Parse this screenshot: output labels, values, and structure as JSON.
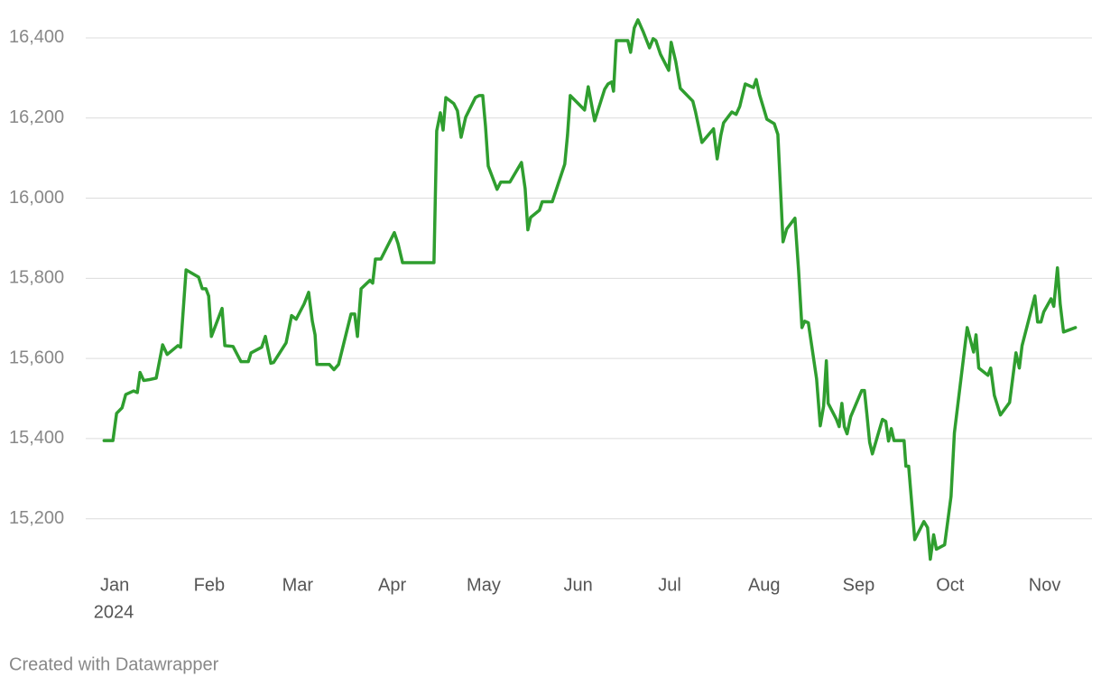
{
  "chart_data": {
    "type": "line",
    "color": "#2f9e2f",
    "grid": true,
    "x": [
      -3.5,
      -0.6,
      0.6,
      2.4,
      3.6,
      6.2,
      7.4,
      8.3,
      9.5,
      11.2,
      13.6,
      15.7,
      17.2,
      20.7,
      21.6,
      23.4,
      27.5,
      28.7,
      29.9,
      30.8,
      31.7,
      35.2,
      36.1,
      38.8,
      41.4,
      43.8,
      44.7,
      48.2,
      49.4,
      51.2,
      52.1,
      56.2,
      58.0,
      59.5,
      62.1,
      63.6,
      64.8,
      65.7,
      66.3,
      70.4,
      71.9,
      73.4,
      77.5,
      78.7,
      79.6,
      80.8,
      83.7,
      84.6,
      85.5,
      87.3,
      91.7,
      92.9,
      94.4,
      104.7,
      105.6,
      106.8,
      107.7,
      108.6,
      111.2,
      112.4,
      113.6,
      115.1,
      118.3,
      119.5,
      120.7,
      121.6,
      122.5,
      125.4,
      126.6,
      129.6,
      133.4,
      134.6,
      135.5,
      136.4,
      139.3,
      140.2,
      143.5,
      147.6,
      148.5,
      149.4,
      154.1,
      155.3,
      157.4,
      160.7,
      161.8,
      163.0,
      163.6,
      164.5,
      168.3,
      169.2,
      170.4,
      171.6,
      173.4,
      175.4,
      176.6,
      177.5,
      179.0,
      181.7,
      182.5,
      184.0,
      185.5,
      189.6,
      190.5,
      192.6,
      196.4,
      197.6,
      198.8,
      199.7,
      202.4,
      203.8,
      205.0,
      206.8,
      209.5,
      210.4,
      211.5,
      213.0,
      213.9,
      216.3,
      217.5,
      219.2,
      220.4,
      223.1,
      224.3,
      225.4,
      226.3,
      227.5,
      230.2,
      231.4,
      232.5,
      233.4,
      234.0,
      236.7,
      237.6,
      238.5,
      239.3,
      240.2,
      241.4,
      245.0,
      245.9,
      246.7,
      247.6,
      248.5,
      251.8,
      252.9,
      253.8,
      254.7,
      255.6,
      258.9,
      259.5,
      260.4,
      262.4,
      265.4,
      266.6,
      267.5,
      268.6,
      269.5,
      272.2,
      274.3,
      275.4,
      279.6,
      281.7,
      282.5,
      283.4,
      286.4,
      287.3,
      288.5,
      290.5,
      293.5,
      295.6,
      296.7,
      297.6,
      301.8,
      302.7,
      303.8,
      304.7,
      307.1,
      308.0,
      309.2,
      310.1,
      311.2,
      315.1
    ],
    "values": [
      15395,
      15395,
      15463,
      15477,
      15510,
      15519,
      15515,
      15565,
      15545,
      15547,
      15551,
      15634,
      15610,
      15632,
      15628,
      15821,
      15803,
      15774,
      15774,
      15756,
      15655,
      15725,
      15632,
      15630,
      15592,
      15592,
      15614,
      15628,
      15655,
      15588,
      15590,
      15639,
      15707,
      15698,
      15736,
      15765,
      15693,
      15659,
      15585,
      15585,
      15572,
      15585,
      15711,
      15711,
      15655,
      15774,
      15795,
      15788,
      15848,
      15848,
      15914,
      15887,
      15839,
      15839,
      16168,
      16213,
      16170,
      16251,
      16236,
      16218,
      16152,
      16202,
      16251,
      16256,
      16256,
      16180,
      16080,
      16022,
      16040,
      16040,
      16089,
      16024,
      15921,
      15952,
      15970,
      15991,
      15991,
      16085,
      16157,
      16256,
      16220,
      16278,
      16193,
      16272,
      16285,
      16290,
      16267,
      16393,
      16393,
      16364,
      16425,
      16445,
      16414,
      16375,
      16398,
      16393,
      16359,
      16319,
      16389,
      16341,
      16274,
      16242,
      16215,
      16139,
      16173,
      16098,
      16157,
      16188,
      16215,
      16209,
      16229,
      16285,
      16276,
      16296,
      16258,
      16220,
      16197,
      16186,
      16159,
      15891,
      15923,
      15950,
      15819,
      15677,
      15693,
      15689,
      15549,
      15432,
      15481,
      15594,
      15488,
      15448,
      15430,
      15488,
      15430,
      15412,
      15455,
      15520,
      15520,
      15461,
      15391,
      15362,
      15448,
      15443,
      15394,
      15425,
      15395,
      15395,
      15331,
      15331,
      15148,
      15193,
      15178,
      15099,
      15160,
      15124,
      15135,
      15256,
      15414,
      15677,
      15616,
      15659,
      15576,
      15558,
      15576,
      15508,
      15459,
      15490,
      15614,
      15576,
      15632,
      15756,
      15691,
      15691,
      15716,
      15749,
      15730,
      15826,
      15736,
      15666,
      15677
    ],
    "xlim": [
      -3.6,
      315.2
    ],
    "xticks": [
      {
        "value": 0,
        "label": "Jan"
      },
      {
        "value": 31,
        "label": "Feb"
      },
      {
        "value": 60,
        "label": "Mar"
      },
      {
        "value": 91,
        "label": "Apr"
      },
      {
        "value": 121,
        "label": "May"
      },
      {
        "value": 152,
        "label": "Jun"
      },
      {
        "value": 182,
        "label": "Jul"
      },
      {
        "value": 213,
        "label": "Aug"
      },
      {
        "value": 244,
        "label": "Sep"
      },
      {
        "value": 274,
        "label": "Oct"
      },
      {
        "value": 305,
        "label": "Nov"
      }
    ],
    "x_year_label": "2024",
    "ylim": [
      15080,
      16460
    ],
    "yticks": [
      {
        "value": 15200,
        "label": "15,200"
      },
      {
        "value": 15400,
        "label": "15,400"
      },
      {
        "value": 15600,
        "label": "15,600"
      },
      {
        "value": 15800,
        "label": "15,800"
      },
      {
        "value": 16000,
        "label": "16,000"
      },
      {
        "value": 16200,
        "label": "16,200"
      },
      {
        "value": 16400,
        "label": "16,400"
      }
    ],
    "credit": "Created with Datawrapper"
  }
}
